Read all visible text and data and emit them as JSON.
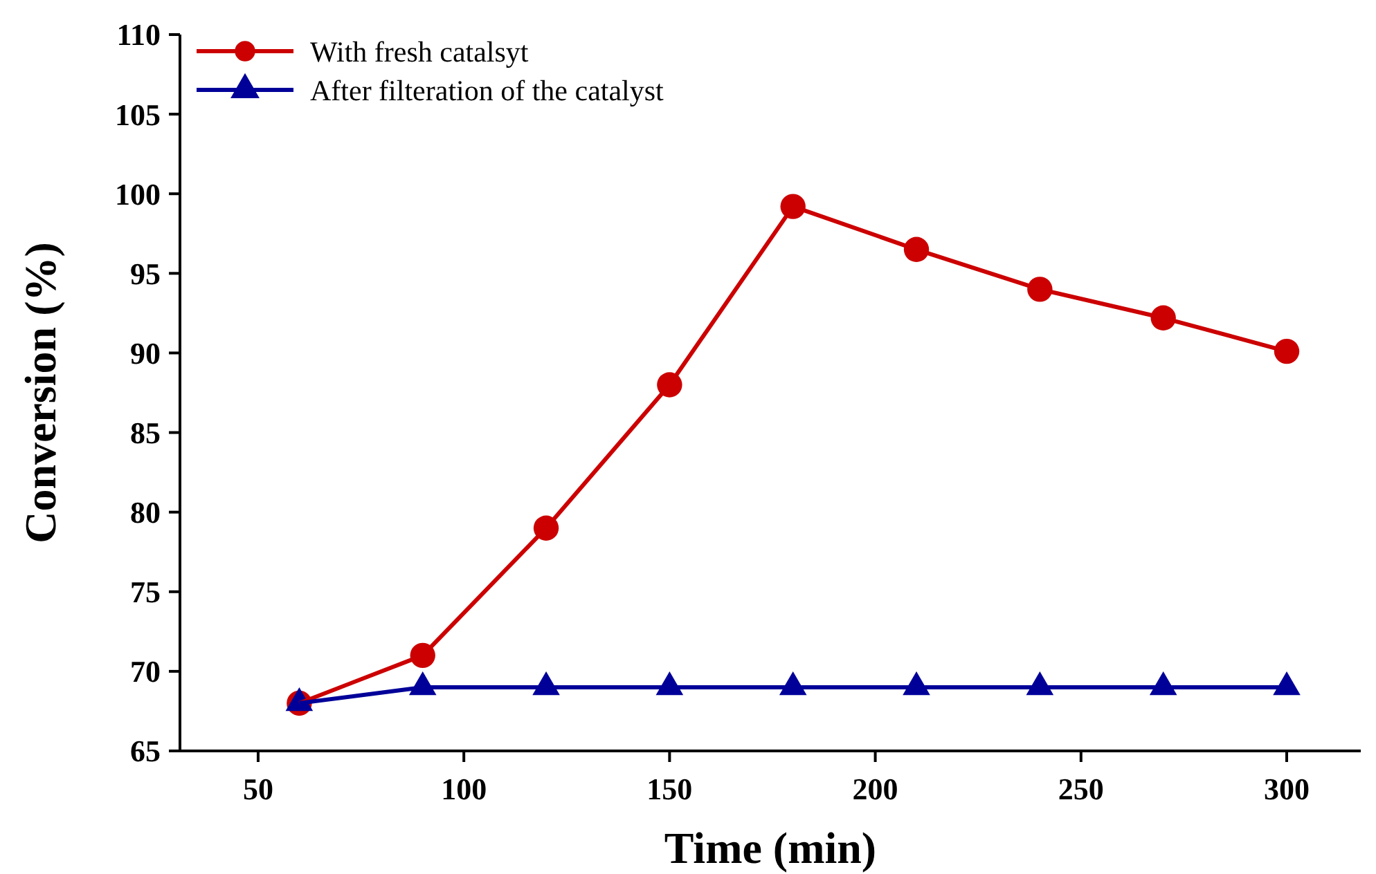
{
  "chart_data": {
    "type": "line",
    "xlabel": "Time (min)",
    "ylabel": "Conversion (%)",
    "x": [
      60,
      90,
      120,
      150,
      180,
      210,
      240,
      270,
      300
    ],
    "series": [
      {
        "name": "With fresh catalsyt",
        "color": "#cc0000",
        "marker": "circle",
        "values": [
          68,
          71,
          79,
          88,
          99.2,
          96.5,
          94,
          92.2,
          90.1
        ]
      },
      {
        "name": "After filteration of the catalyst",
        "color": "#000099",
        "marker": "triangle",
        "values": [
          68,
          69,
          69,
          69,
          69,
          69,
          69,
          69,
          69
        ]
      }
    ],
    "xlim": [
      31,
      318
    ],
    "xticks": [
      50,
      100,
      150,
      200,
      250,
      300
    ],
    "ylim": [
      65,
      110
    ],
    "yticks": [
      65,
      70,
      75,
      80,
      85,
      90,
      95,
      100,
      105,
      110
    ],
    "grid": false,
    "legend": "top left",
    "line_style": "solid"
  }
}
